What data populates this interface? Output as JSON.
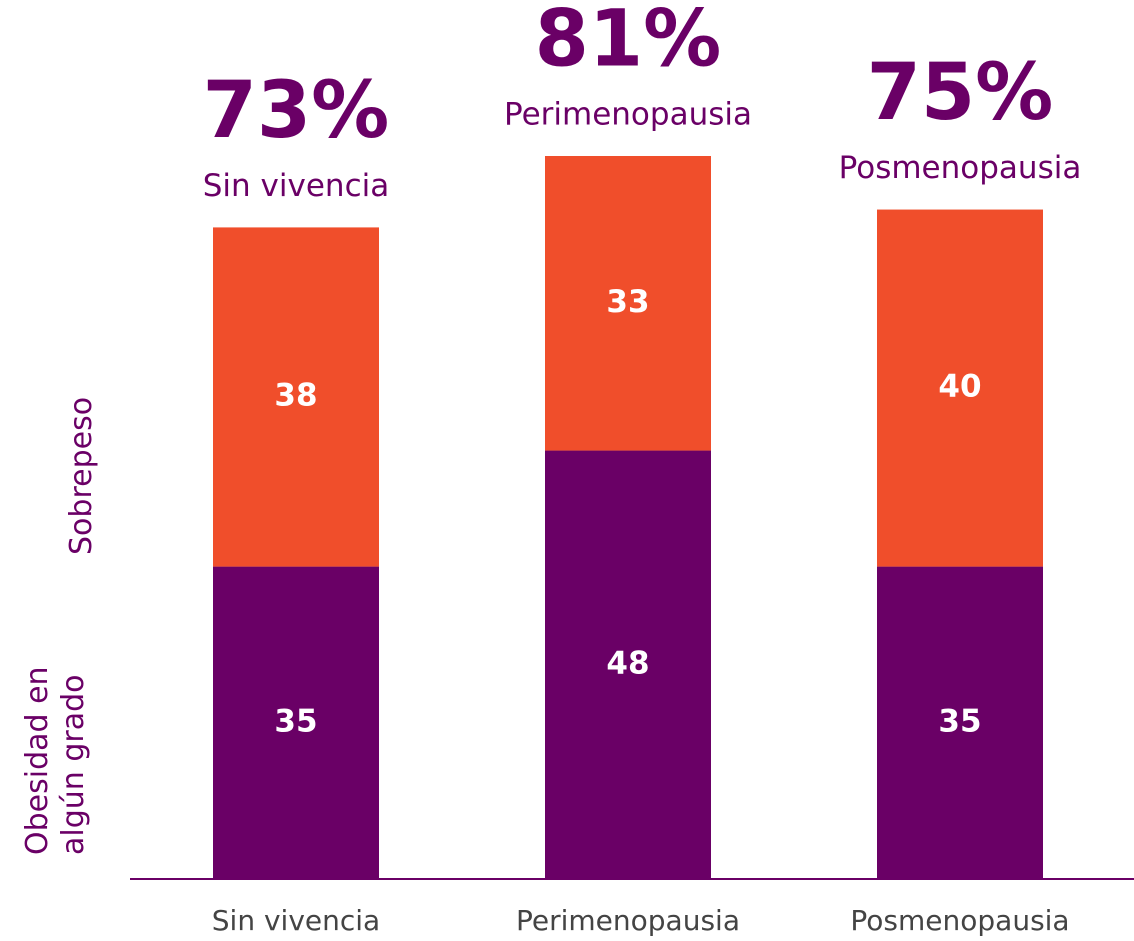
{
  "chart_data": {
    "type": "stacked_bar",
    "categories": [
      "Sin vivencia",
      "Perimenopausia",
      "Posmenopausia"
    ],
    "series": [
      {
        "name": "Obesidad en algún grado",
        "color": "#6a0066",
        "values": [
          35,
          48,
          35
        ]
      },
      {
        "name": "Sobrepeso",
        "color": "#f04e2b",
        "values": [
          38,
          33,
          40
        ]
      }
    ],
    "totals": [
      73,
      81,
      75
    ],
    "total_labels": [
      "73%",
      "81%",
      "75%"
    ]
  }
}
